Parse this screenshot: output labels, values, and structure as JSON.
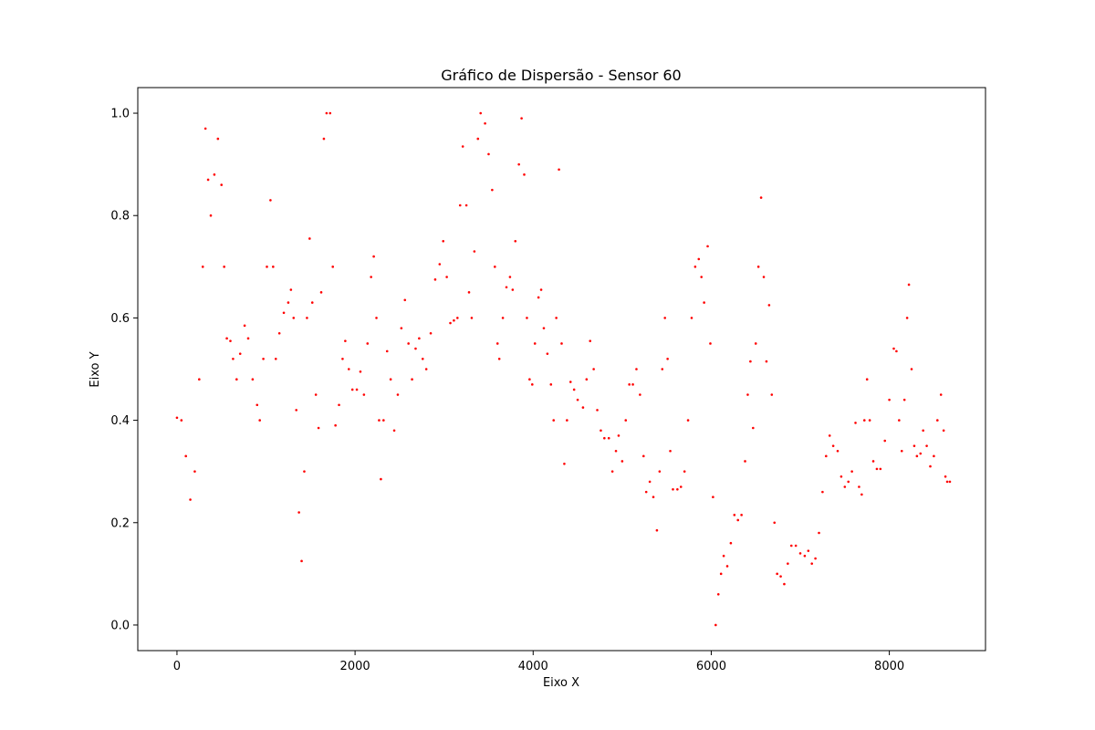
{
  "chart_data": {
    "type": "scatter",
    "title": "Gráfico de Dispersão - Sensor 60",
    "xlabel": "Eixo X",
    "ylabel": "Eixo Y",
    "xlim": [
      -440,
      9080
    ],
    "ylim": [
      -0.05,
      1.05
    ],
    "xticks": [
      0,
      2000,
      4000,
      6000,
      8000
    ],
    "xtick_labels": [
      "0",
      "2000",
      "4000",
      "6000",
      "8000"
    ],
    "yticks": [
      0.0,
      0.2,
      0.4,
      0.6,
      0.8,
      1.0
    ],
    "ytick_labels": [
      "0.0",
      "0.2",
      "0.4",
      "0.6",
      "0.8",
      "1.0"
    ],
    "grid": false,
    "legend": "none",
    "marker_color": "#ff0000",
    "series": [
      {
        "points": [
          [
            0,
            0.405
          ],
          [
            50,
            0.4
          ],
          [
            100,
            0.33
          ],
          [
            150,
            0.245
          ],
          [
            200,
            0.3
          ],
          [
            250,
            0.48
          ],
          [
            290,
            0.7
          ],
          [
            320,
            0.97
          ],
          [
            350,
            0.87
          ],
          [
            380,
            0.8
          ],
          [
            420,
            0.88
          ],
          [
            460,
            0.95
          ],
          [
            500,
            0.86
          ],
          [
            530,
            0.7
          ],
          [
            560,
            0.56
          ],
          [
            600,
            0.555
          ],
          [
            630,
            0.52
          ],
          [
            670,
            0.48
          ],
          [
            710,
            0.53
          ],
          [
            760,
            0.585
          ],
          [
            800,
            0.56
          ],
          [
            850,
            0.48
          ],
          [
            900,
            0.43
          ],
          [
            930,
            0.4
          ],
          [
            970,
            0.52
          ],
          [
            1010,
            0.7
          ],
          [
            1050,
            0.83
          ],
          [
            1080,
            0.7
          ],
          [
            1110,
            0.52
          ],
          [
            1150,
            0.57
          ],
          [
            1200,
            0.61
          ],
          [
            1250,
            0.63
          ],
          [
            1280,
            0.655
          ],
          [
            1310,
            0.6
          ],
          [
            1340,
            0.42
          ],
          [
            1370,
            0.22
          ],
          [
            1400,
            0.125
          ],
          [
            1430,
            0.3
          ],
          [
            1460,
            0.6
          ],
          [
            1490,
            0.755
          ],
          [
            1520,
            0.63
          ],
          [
            1560,
            0.45
          ],
          [
            1590,
            0.385
          ],
          [
            1620,
            0.65
          ],
          [
            1650,
            0.95
          ],
          [
            1680,
            1.0
          ],
          [
            1720,
            1.0
          ],
          [
            1750,
            0.7
          ],
          [
            1780,
            0.39
          ],
          [
            1820,
            0.43
          ],
          [
            1860,
            0.52
          ],
          [
            1890,
            0.555
          ],
          [
            1930,
            0.5
          ],
          [
            1970,
            0.46
          ],
          [
            2020,
            0.46
          ],
          [
            2060,
            0.495
          ],
          [
            2100,
            0.45
          ],
          [
            2140,
            0.55
          ],
          [
            2180,
            0.68
          ],
          [
            2210,
            0.72
          ],
          [
            2240,
            0.6
          ],
          [
            2270,
            0.4
          ],
          [
            2290,
            0.285
          ],
          [
            2320,
            0.4
          ],
          [
            2360,
            0.535
          ],
          [
            2400,
            0.48
          ],
          [
            2440,
            0.38
          ],
          [
            2480,
            0.45
          ],
          [
            2520,
            0.58
          ],
          [
            2560,
            0.635
          ],
          [
            2600,
            0.55
          ],
          [
            2640,
            0.48
          ],
          [
            2680,
            0.54
          ],
          [
            2720,
            0.56
          ],
          [
            2760,
            0.52
          ],
          [
            2800,
            0.5
          ],
          [
            2850,
            0.57
          ],
          [
            2900,
            0.675
          ],
          [
            2950,
            0.705
          ],
          [
            2990,
            0.75
          ],
          [
            3030,
            0.68
          ],
          [
            3070,
            0.59
          ],
          [
            3110,
            0.595
          ],
          [
            3150,
            0.6
          ],
          [
            3180,
            0.82
          ],
          [
            3210,
            0.935
          ],
          [
            3250,
            0.82
          ],
          [
            3280,
            0.65
          ],
          [
            3310,
            0.6
          ],
          [
            3340,
            0.73
          ],
          [
            3380,
            0.95
          ],
          [
            3410,
            1.0
          ],
          [
            3460,
            0.98
          ],
          [
            3500,
            0.92
          ],
          [
            3540,
            0.85
          ],
          [
            3570,
            0.7
          ],
          [
            3600,
            0.55
          ],
          [
            3620,
            0.52
          ],
          [
            3660,
            0.6
          ],
          [
            3700,
            0.66
          ],
          [
            3740,
            0.68
          ],
          [
            3770,
            0.655
          ],
          [
            3800,
            0.75
          ],
          [
            3840,
            0.9
          ],
          [
            3870,
            0.99
          ],
          [
            3900,
            0.88
          ],
          [
            3930,
            0.6
          ],
          [
            3960,
            0.48
          ],
          [
            3990,
            0.47
          ],
          [
            4020,
            0.55
          ],
          [
            4060,
            0.64
          ],
          [
            4090,
            0.655
          ],
          [
            4120,
            0.58
          ],
          [
            4160,
            0.53
          ],
          [
            4200,
            0.47
          ],
          [
            4230,
            0.4
          ],
          [
            4260,
            0.6
          ],
          [
            4290,
            0.89
          ],
          [
            4320,
            0.55
          ],
          [
            4350,
            0.315
          ],
          [
            4380,
            0.4
          ],
          [
            4420,
            0.475
          ],
          [
            4460,
            0.46
          ],
          [
            4500,
            0.44
          ],
          [
            4560,
            0.425
          ],
          [
            4600,
            0.48
          ],
          [
            4640,
            0.555
          ],
          [
            4680,
            0.5
          ],
          [
            4720,
            0.42
          ],
          [
            4760,
            0.38
          ],
          [
            4800,
            0.365
          ],
          [
            4850,
            0.365
          ],
          [
            4890,
            0.3
          ],
          [
            4930,
            0.34
          ],
          [
            4960,
            0.37
          ],
          [
            5000,
            0.32
          ],
          [
            5040,
            0.4
          ],
          [
            5080,
            0.47
          ],
          [
            5120,
            0.47
          ],
          [
            5160,
            0.5
          ],
          [
            5200,
            0.45
          ],
          [
            5240,
            0.33
          ],
          [
            5270,
            0.26
          ],
          [
            5310,
            0.28
          ],
          [
            5350,
            0.25
          ],
          [
            5390,
            0.185
          ],
          [
            5420,
            0.3
          ],
          [
            5450,
            0.5
          ],
          [
            5480,
            0.6
          ],
          [
            5510,
            0.52
          ],
          [
            5540,
            0.34
          ],
          [
            5570,
            0.265
          ],
          [
            5620,
            0.265
          ],
          [
            5660,
            0.27
          ],
          [
            5700,
            0.3
          ],
          [
            5740,
            0.4
          ],
          [
            5780,
            0.6
          ],
          [
            5820,
            0.7
          ],
          [
            5860,
            0.715
          ],
          [
            5890,
            0.68
          ],
          [
            5920,
            0.63
          ],
          [
            5960,
            0.74
          ],
          [
            5990,
            0.55
          ],
          [
            6020,
            0.25
          ],
          [
            6050,
            0.0
          ],
          [
            6080,
            0.06
          ],
          [
            6110,
            0.1
          ],
          [
            6140,
            0.135
          ],
          [
            6180,
            0.115
          ],
          [
            6220,
            0.16
          ],
          [
            6260,
            0.215
          ],
          [
            6300,
            0.205
          ],
          [
            6340,
            0.215
          ],
          [
            6380,
            0.32
          ],
          [
            6410,
            0.45
          ],
          [
            6440,
            0.515
          ],
          [
            6470,
            0.385
          ],
          [
            6500,
            0.55
          ],
          [
            6530,
            0.7
          ],
          [
            6560,
            0.835
          ],
          [
            6590,
            0.68
          ],
          [
            6620,
            0.515
          ],
          [
            6650,
            0.625
          ],
          [
            6680,
            0.45
          ],
          [
            6710,
            0.2
          ],
          [
            6740,
            0.1
          ],
          [
            6780,
            0.095
          ],
          [
            6820,
            0.08
          ],
          [
            6860,
            0.12
          ],
          [
            6900,
            0.155
          ],
          [
            6950,
            0.155
          ],
          [
            7000,
            0.14
          ],
          [
            7050,
            0.135
          ],
          [
            7090,
            0.145
          ],
          [
            7130,
            0.12
          ],
          [
            7170,
            0.13
          ],
          [
            7210,
            0.18
          ],
          [
            7250,
            0.26
          ],
          [
            7290,
            0.33
          ],
          [
            7330,
            0.37
          ],
          [
            7370,
            0.35
          ],
          [
            7420,
            0.34
          ],
          [
            7460,
            0.29
          ],
          [
            7500,
            0.27
          ],
          [
            7540,
            0.28
          ],
          [
            7580,
            0.3
          ],
          [
            7620,
            0.395
          ],
          [
            7660,
            0.27
          ],
          [
            7690,
            0.255
          ],
          [
            7720,
            0.4
          ],
          [
            7750,
            0.48
          ],
          [
            7780,
            0.4
          ],
          [
            7820,
            0.32
          ],
          [
            7860,
            0.305
          ],
          [
            7900,
            0.305
          ],
          [
            7950,
            0.36
          ],
          [
            8000,
            0.44
          ],
          [
            8050,
            0.54
          ],
          [
            8080,
            0.535
          ],
          [
            8110,
            0.4
          ],
          [
            8140,
            0.34
          ],
          [
            8170,
            0.44
          ],
          [
            8200,
            0.6
          ],
          [
            8220,
            0.665
          ],
          [
            8250,
            0.5
          ],
          [
            8280,
            0.35
          ],
          [
            8310,
            0.33
          ],
          [
            8350,
            0.335
          ],
          [
            8380,
            0.38
          ],
          [
            8420,
            0.35
          ],
          [
            8460,
            0.31
          ],
          [
            8500,
            0.33
          ],
          [
            8540,
            0.4
          ],
          [
            8580,
            0.45
          ],
          [
            8610,
            0.38
          ],
          [
            8630,
            0.29
          ],
          [
            8650,
            0.28
          ],
          [
            8680,
            0.28
          ]
        ]
      }
    ]
  }
}
